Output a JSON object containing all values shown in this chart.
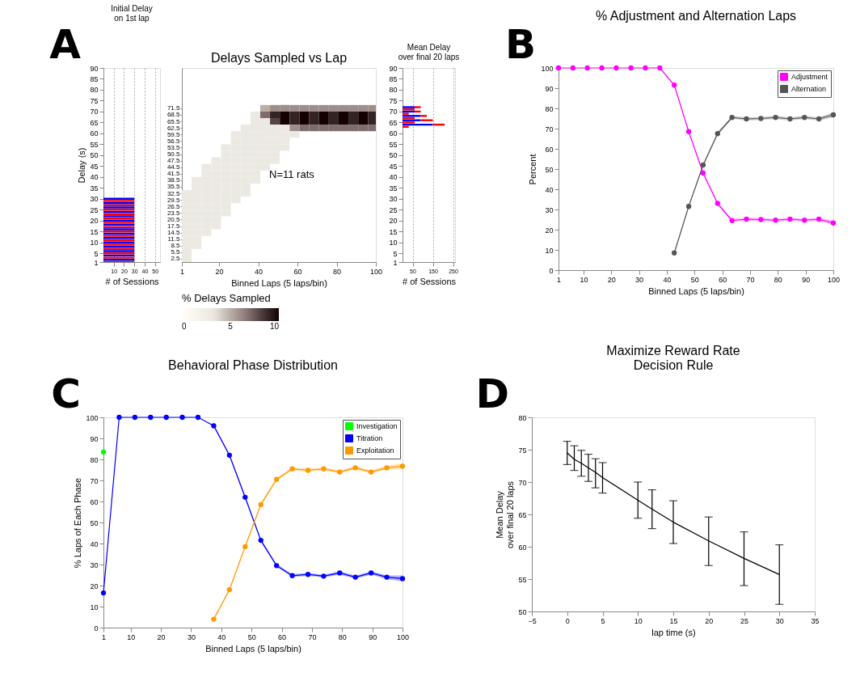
{
  "chart_data": [
    {
      "type": "bar",
      "orientation": "horizontal",
      "title": "Initial Delay\non 1st lap",
      "xlabel": "# of Sessions",
      "ylabel": "Delay (s)",
      "annotations": [
        "A"
      ],
      "x": [
        1,
        2,
        3,
        4,
        5,
        6,
        7,
        8,
        9,
        10,
        11,
        12,
        13,
        14,
        15,
        16,
        17,
        18,
        19,
        20,
        21,
        22,
        23,
        24,
        25,
        26,
        27,
        28,
        29,
        30
      ],
      "values": [
        30,
        30,
        30,
        30,
        30,
        30,
        30,
        30,
        30,
        30,
        30,
        30,
        30,
        30,
        30,
        30,
        30,
        30,
        30,
        30,
        30,
        30,
        30,
        30,
        30,
        30,
        30,
        30,
        30,
        30
      ],
      "colors": [
        "#ff0000",
        "#0000ff",
        "#ff0000",
        "#0000ff",
        "#ff0000",
        "#0000ff",
        "#ff0000",
        "#0000ff",
        "#ff0000",
        "#0000ff",
        "#ff0000",
        "#0000ff",
        "#ff0000",
        "#0000ff",
        "#ff0000",
        "#0000ff",
        "#ff0000",
        "#0000ff",
        "#ff0000",
        "#0000ff",
        "#ff0000",
        "#0000ff",
        "#ff0000",
        "#0000ff",
        "#ff0000",
        "#0000ff",
        "#ff0000",
        "#0000ff",
        "#ff0000",
        "#0000ff"
      ],
      "xlim": [
        0,
        55
      ],
      "xticks": [
        10,
        20,
        30,
        40,
        50
      ],
      "ylim": [
        1,
        90
      ],
      "yticks": [
        1,
        5,
        10,
        15,
        20,
        25,
        30,
        35,
        40,
        45,
        50,
        55,
        60,
        65,
        70,
        75,
        80,
        85,
        90
      ],
      "grid": "x"
    },
    {
      "type": "heatmap",
      "title": "Delays Sampled vs Lap",
      "xlabel": "Binned Laps (5 laps/bin)",
      "annotations": [
        "N=11 rats"
      ],
      "clabel": "% Delays Sampled",
      "x": [
        3.5,
        8.5,
        13.5,
        18.5,
        23.5,
        28.5,
        33.5,
        38.5,
        43.5,
        48.5,
        53.5,
        58.5,
        63.5,
        68.5,
        73.5,
        78.5,
        83.5,
        88.5,
        93.5,
        98.5
      ],
      "y_categories": [
        "71.5",
        "68.5",
        "65.5",
        "62.5",
        "59.5",
        "56.5",
        "53.5",
        "50.5",
        "47.5",
        "44.5",
        "41.5",
        "38.5",
        "35.5",
        "32.5",
        "29.5",
        "26.5",
        "23.5",
        "20.5",
        "17.5",
        "14.5",
        "11.5",
        "8.5",
        "5.5",
        "2.5"
      ],
      "cells": [
        [
          null,
          null,
          null,
          null,
          null,
          null,
          null,
          null,
          5,
          6,
          6,
          6,
          6,
          6,
          6,
          6,
          6,
          6,
          6,
          6
        ],
        [
          null,
          null,
          null,
          null,
          null,
          null,
          null,
          3,
          7,
          9,
          10,
          9,
          10,
          9,
          10,
          9,
          10,
          9,
          10,
          9
        ],
        [
          null,
          null,
          null,
          null,
          null,
          null,
          null,
          3,
          3,
          8,
          10,
          9,
          10,
          9,
          10,
          9,
          10,
          9,
          10,
          9
        ],
        [
          null,
          null,
          null,
          null,
          null,
          null,
          3,
          3,
          3,
          3,
          3,
          6,
          7,
          7,
          7,
          7,
          7,
          7,
          7,
          7
        ],
        [
          null,
          null,
          null,
          null,
          null,
          3,
          3,
          3,
          3,
          3,
          3,
          3,
          null,
          null,
          null,
          null,
          null,
          null,
          null,
          null
        ],
        [
          null,
          null,
          null,
          null,
          null,
          3,
          3,
          3,
          3,
          3,
          3,
          null,
          null,
          null,
          null,
          null,
          null,
          null,
          null,
          null
        ],
        [
          null,
          null,
          null,
          null,
          3,
          3,
          3,
          3,
          3,
          3,
          3,
          null,
          null,
          null,
          null,
          null,
          null,
          null,
          null,
          null
        ],
        [
          null,
          null,
          null,
          null,
          3,
          3,
          3,
          3,
          3,
          3,
          null,
          null,
          null,
          null,
          null,
          null,
          null,
          null,
          null,
          null
        ],
        [
          null,
          null,
          null,
          3,
          3,
          3,
          3,
          3,
          3,
          3,
          null,
          null,
          null,
          null,
          null,
          null,
          null,
          null,
          null,
          null
        ],
        [
          null,
          null,
          3,
          3,
          3,
          3,
          3,
          3,
          3,
          null,
          null,
          null,
          null,
          null,
          null,
          null,
          null,
          null,
          null,
          null
        ],
        [
          null,
          null,
          3,
          3,
          3,
          3,
          3,
          3,
          null,
          null,
          null,
          null,
          null,
          null,
          null,
          null,
          null,
          null,
          null,
          null
        ],
        [
          null,
          3,
          3,
          3,
          3,
          3,
          3,
          3,
          null,
          null,
          null,
          null,
          null,
          null,
          null,
          null,
          null,
          null,
          null,
          null
        ],
        [
          null,
          3,
          3,
          3,
          3,
          3,
          3,
          null,
          null,
          null,
          null,
          null,
          null,
          null,
          null,
          null,
          null,
          null,
          null,
          null
        ],
        [
          3,
          3,
          3,
          3,
          3,
          3,
          3,
          null,
          null,
          null,
          null,
          null,
          null,
          null,
          null,
          null,
          null,
          null,
          null,
          null
        ],
        [
          3,
          3,
          3,
          3,
          3,
          3,
          null,
          null,
          null,
          null,
          null,
          null,
          null,
          null,
          null,
          null,
          null,
          null,
          null,
          null
        ],
        [
          3,
          3,
          3,
          3,
          3,
          null,
          null,
          null,
          null,
          null,
          null,
          null,
          null,
          null,
          null,
          null,
          null,
          null,
          null,
          null
        ],
        [
          3,
          3,
          3,
          3,
          3,
          null,
          null,
          null,
          null,
          null,
          null,
          null,
          null,
          null,
          null,
          null,
          null,
          null,
          null,
          null
        ],
        [
          3,
          3,
          3,
          3,
          null,
          null,
          null,
          null,
          null,
          null,
          null,
          null,
          null,
          null,
          null,
          null,
          null,
          null,
          null,
          null
        ],
        [
          3,
          3,
          3,
          3,
          null,
          null,
          null,
          null,
          null,
          null,
          null,
          null,
          null,
          null,
          null,
          null,
          null,
          null,
          null,
          null
        ],
        [
          3,
          3,
          3,
          null,
          null,
          null,
          null,
          null,
          null,
          null,
          null,
          null,
          null,
          null,
          null,
          null,
          null,
          null,
          null,
          null
        ],
        [
          3,
          3,
          null,
          null,
          null,
          null,
          null,
          null,
          null,
          null,
          null,
          null,
          null,
          null,
          null,
          null,
          null,
          null,
          null,
          null
        ],
        [
          3,
          3,
          null,
          null,
          null,
          null,
          null,
          null,
          null,
          null,
          null,
          null,
          null,
          null,
          null,
          null,
          null,
          null,
          null,
          null
        ],
        [
          3,
          null,
          null,
          null,
          null,
          null,
          null,
          null,
          null,
          null,
          null,
          null,
          null,
          null,
          null,
          null,
          null,
          null,
          null,
          null
        ],
        [
          3,
          null,
          null,
          null,
          null,
          null,
          null,
          null,
          null,
          null,
          null,
          null,
          null,
          null,
          null,
          null,
          null,
          null,
          null,
          null
        ]
      ],
      "xlim": [
        1,
        100
      ],
      "xticks": [
        1,
        20,
        40,
        60,
        80,
        100
      ],
      "clim": [
        0,
        10
      ],
      "cticks": [
        0,
        5,
        10
      ]
    },
    {
      "type": "bar",
      "orientation": "horizontal",
      "stacked": true,
      "title": "Mean Delay\nover final 20 laps",
      "xlabel": "# of Sessions",
      "x": [
        63,
        64,
        65,
        66,
        67,
        68,
        69,
        70,
        71,
        72
      ],
      "series": [
        {
          "color": "#0000ff",
          "values": [
            null,
            150,
            null,
            90,
            null,
            90,
            null,
            60,
            null,
            60
          ]
        },
        {
          "color": "#ff0000",
          "values": [
            31,
            58,
            60,
            60,
            60,
            30,
            31,
            30,
            60,
            30
          ]
        }
      ],
      "xlim": [
        0,
        260
      ],
      "xticks": [
        50,
        150,
        250
      ],
      "ylim": [
        1,
        90
      ],
      "yticks": [
        1,
        5,
        10,
        15,
        20,
        25,
        30,
        35,
        40,
        45,
        50,
        55,
        60,
        65,
        70,
        75,
        80,
        85,
        90
      ],
      "grid": "x"
    },
    {
      "type": "line",
      "title": "% Adjustment and Alternation Laps",
      "xlabel": "Binned Laps (5 laps/bin)",
      "ylabel": "Percent",
      "annotations": [
        "B"
      ],
      "x": [
        1,
        6.2,
        11.4,
        16.6,
        21.8,
        27.1,
        32.3,
        37.5,
        42.7,
        47.9,
        53.1,
        58.3,
        63.5,
        68.7,
        73.9,
        79.2,
        84.4,
        89.6,
        94.8,
        100
      ],
      "series": [
        {
          "name": "Adjustment",
          "color": "#ff00ff",
          "values": [
            100,
            100,
            100,
            100,
            100,
            100,
            100,
            100,
            91.5,
            68.5,
            48,
            33,
            24.5,
            25.2,
            25,
            24.7,
            25.2,
            24.7,
            25.2,
            23.3
          ],
          "lower": [
            null,
            null,
            null,
            null,
            null,
            null,
            null,
            null,
            91,
            68,
            47.3,
            32,
            24,
            24.5,
            24.3,
            24,
            24.5,
            24,
            24.5,
            22.3
          ],
          "upper": [
            null,
            null,
            null,
            null,
            null,
            null,
            null,
            null,
            92,
            69,
            48.7,
            33.5,
            25.3,
            25.9,
            25.7,
            25.4,
            25.9,
            25.4,
            25.9,
            24.5
          ]
        },
        {
          "name": "Alternation",
          "color": "#555555",
          "values": [
            null,
            null,
            null,
            null,
            null,
            null,
            null,
            null,
            8.5,
            31.5,
            52,
            67.5,
            75.5,
            74.8,
            75,
            75.5,
            74.8,
            75.5,
            74.8,
            76.8
          ],
          "lower": [
            null,
            null,
            null,
            null,
            null,
            null,
            null,
            null,
            8,
            31,
            51.3,
            66.7,
            74.8,
            74,
            74.3,
            74.7,
            74,
            74.7,
            74,
            75.5
          ],
          "upper": [
            null,
            null,
            null,
            null,
            null,
            null,
            null,
            null,
            9,
            32,
            52.7,
            68.3,
            76.2,
            75.6,
            75.7,
            76.3,
            75.6,
            76.3,
            75.6,
            78
          ]
        }
      ],
      "xlim": [
        1,
        100
      ],
      "xticks": [
        1,
        10,
        20,
        30,
        40,
        50,
        60,
        70,
        80,
        90,
        100
      ],
      "ylim": [
        0,
        100
      ],
      "yticks": [
        0,
        10,
        20,
        30,
        40,
        50,
        60,
        70,
        80,
        90,
        100
      ],
      "legend": "top right",
      "marker": "circle",
      "line_style": "solid"
    },
    {
      "type": "line",
      "title": "Behavioral Phase Distribution",
      "xlabel": "Binned Laps (5 laps/bin)",
      "ylabel": "% Laps of Each Phase",
      "annotations": [
        "C"
      ],
      "x": [
        1,
        6.2,
        11.4,
        16.6,
        21.8,
        27.1,
        32.3,
        37.5,
        42.7,
        47.9,
        53.1,
        58.3,
        63.5,
        68.7,
        73.9,
        79.2,
        84.4,
        89.6,
        94.8,
        100
      ],
      "series": [
        {
          "name": "Investigation",
          "color": "#00ff00",
          "values": [
            83.5,
            null,
            null,
            null,
            null,
            null,
            null,
            null,
            null,
            null,
            null,
            null,
            null,
            null,
            null,
            null,
            null,
            null,
            null,
            null
          ]
        },
        {
          "name": "Titration",
          "color": "#0000ff",
          "values": [
            16.5,
            100,
            100,
            100,
            100,
            100,
            100,
            96,
            82,
            62,
            41.5,
            29.5,
            24.7,
            25.3,
            24.5,
            26,
            24,
            26,
            24,
            23.3
          ],
          "lower": [
            null,
            null,
            null,
            null,
            null,
            null,
            null,
            95.5,
            81.3,
            61.2,
            40.7,
            28.8,
            24,
            24.6,
            23.8,
            25.2,
            23.3,
            25.2,
            23,
            22
          ],
          "upper": [
            null,
            null,
            null,
            null,
            null,
            null,
            null,
            96.5,
            82.7,
            62.8,
            42.3,
            30.2,
            25.5,
            26,
            25.2,
            26.8,
            24.7,
            26.8,
            24.8,
            24.8
          ]
        },
        {
          "name": "Exploitation",
          "color": "#ff9900",
          "values": [
            null,
            null,
            null,
            null,
            null,
            null,
            null,
            4,
            18,
            38.5,
            58.5,
            70.5,
            75.5,
            74.8,
            75.5,
            74,
            76,
            74,
            76,
            76.8
          ],
          "lower": [
            null,
            null,
            null,
            null,
            null,
            null,
            null,
            3.5,
            17.3,
            37.7,
            57.7,
            69.8,
            74.8,
            74,
            74.8,
            73.3,
            75.2,
            73.3,
            75.2,
            75.5
          ],
          "upper": [
            null,
            null,
            null,
            null,
            null,
            null,
            null,
            4.5,
            18.7,
            39.3,
            59.3,
            71.2,
            76.2,
            75.6,
            76.2,
            74.7,
            76.8,
            74.7,
            77,
            78.2
          ]
        }
      ],
      "xlim": [
        1,
        100
      ],
      "xticks": [
        1,
        10,
        20,
        30,
        40,
        50,
        60,
        70,
        80,
        90,
        100
      ],
      "ylim": [
        0,
        100
      ],
      "yticks": [
        0,
        10,
        20,
        30,
        40,
        50,
        60,
        70,
        80,
        90,
        100
      ],
      "legend": "top right",
      "marker": "circle",
      "line_style": "solid"
    },
    {
      "type": "line",
      "title": "Maximize Reward Rate\nDecision Rule",
      "xlabel": "lap time (s)",
      "ylabel": "Mean Delay\nover final 20 laps",
      "annotations": [
        "D"
      ],
      "x": [
        0,
        1,
        2,
        3,
        4,
        5,
        10,
        12,
        15,
        20,
        25,
        30
      ],
      "values": [
        74.5,
        73.5,
        72.9,
        72.2,
        71.5,
        70.7,
        67.2,
        65.8,
        63.8,
        60.9,
        58.2,
        55.7
      ],
      "color": "#000000",
      "errors": [
        [
          72.7,
          76.3
        ],
        [
          71.8,
          75.6
        ],
        [
          70.9,
          74.9
        ],
        [
          70.1,
          74.3
        ],
        [
          69.1,
          73.6
        ],
        [
          68.3,
          73.0
        ],
        [
          64.4,
          70.0
        ],
        [
          62.8,
          68.8
        ],
        [
          60.5,
          67.1
        ],
        [
          57.1,
          64.6
        ],
        [
          54.0,
          62.3
        ],
        [
          51.1,
          60.3
        ]
      ],
      "xlim": [
        -5,
        35
      ],
      "xticks": [
        -5,
        0,
        5,
        10,
        15,
        20,
        25,
        30,
        35
      ],
      "ylim": [
        50,
        80
      ],
      "yticks": [
        50,
        55,
        60,
        65,
        70,
        75,
        80
      ],
      "line_style": "solid"
    }
  ]
}
